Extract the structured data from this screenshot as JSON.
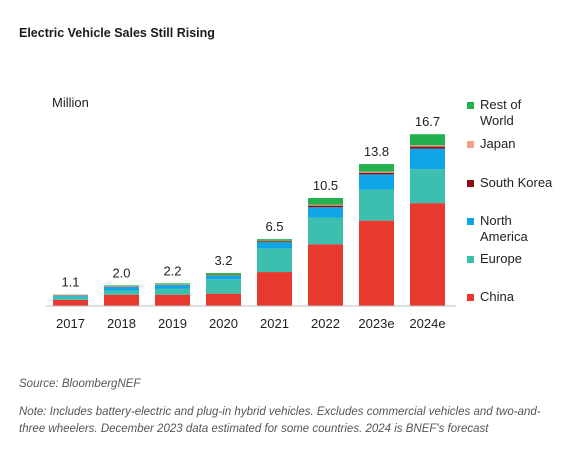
{
  "title": "Electric Vehicle Sales Still Rising",
  "source": "Source: BloombergNEF",
  "note": "Note: Includes battery-electric and plug-in hybrid vehicles. Excludes commercial vehicles and two-and-three wheelers. December 2023 data estimated for some countries. 2024 is BNEF's forecast",
  "chart_data": {
    "type": "bar",
    "stacked": true,
    "unit_label": "Million",
    "categories": [
      "2017",
      "2018",
      "2019",
      "2020",
      "2021",
      "2022",
      "2023e",
      "2024e"
    ],
    "totals": [
      1.1,
      2.0,
      2.2,
      3.2,
      6.5,
      10.5,
      13.8,
      16.7
    ],
    "total_labels": [
      "1.1",
      "2.0",
      "2.2",
      "3.2",
      "6.5",
      "10.5",
      "13.8",
      "16.7"
    ],
    "ylim": [
      0,
      17.5
    ],
    "grid": false,
    "legend_position": "right",
    "series": [
      {
        "name": "China",
        "color": "#e8392f",
        "values": [
          0.6,
          1.1,
          1.1,
          1.2,
          3.3,
          6.0,
          8.3,
          10.0
        ]
      },
      {
        "name": "Europe",
        "color": "#3cbfae",
        "values": [
          0.3,
          0.4,
          0.6,
          1.4,
          2.3,
          2.6,
          3.0,
          3.3
        ]
      },
      {
        "name": "North\nAmerica",
        "color": "#0fa6e8",
        "values": [
          0.1,
          0.36,
          0.33,
          0.33,
          0.6,
          1.0,
          1.5,
          2.0
        ]
      },
      {
        "name": "South Korea",
        "color": "#8b0f12",
        "values": [
          0.02,
          0.03,
          0.03,
          0.05,
          0.1,
          0.16,
          0.16,
          0.2
        ]
      },
      {
        "name": "Japan",
        "color": "#f4a08e",
        "values": [
          0.05,
          0.05,
          0.04,
          0.03,
          0.04,
          0.09,
          0.1,
          0.12
        ]
      },
      {
        "name": "Rest of\nWorld",
        "color": "#21b04b",
        "values": [
          0.03,
          0.06,
          0.1,
          0.19,
          0.16,
          0.65,
          0.74,
          1.08
        ]
      }
    ],
    "legend_order": [
      "Rest of\nWorld",
      "Japan",
      "South Korea",
      "North\nAmerica",
      "Europe",
      "China"
    ]
  }
}
